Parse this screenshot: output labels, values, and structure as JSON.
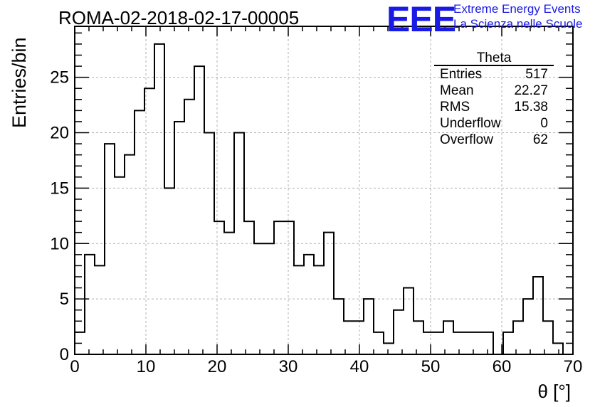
{
  "chart_data": {
    "type": "histogram",
    "title": "ROMA-02-2018-02-17-00005",
    "xlabel": "θ [°]",
    "ylabel": "Entries/bin",
    "xlim": [
      0,
      70
    ],
    "ylim": [
      0,
      29.6
    ],
    "bin_width": 1.4,
    "x_ticks": [
      0,
      10,
      20,
      30,
      40,
      50,
      60,
      70
    ],
    "y_ticks": [
      0,
      5,
      10,
      15,
      20,
      25
    ],
    "grid": true,
    "counts": [
      2,
      9,
      8,
      19,
      16,
      18,
      22,
      24,
      28,
      15,
      21,
      23,
      26,
      20,
      12,
      11,
      20,
      12,
      10,
      10,
      12,
      12,
      8,
      9,
      8,
      11,
      5,
      3,
      3,
      5,
      2,
      1,
      4,
      6,
      3,
      2,
      2,
      3,
      2,
      2,
      2,
      2,
      0,
      2,
      3,
      5,
      7,
      3,
      1,
      0
    ]
  },
  "stats_box": {
    "title": "Theta",
    "rows": [
      {
        "label": "Entries",
        "value": "517"
      },
      {
        "label": "Mean",
        "value": "22.27"
      },
      {
        "label": "RMS",
        "value": "15.38"
      },
      {
        "label": "Underflow",
        "value": "0"
      },
      {
        "label": "Overflow",
        "value": "62"
      }
    ]
  },
  "logo": {
    "mark": "EEE",
    "line1": "Extreme Energy Events",
    "line2": "La Scienza nelle Scuole",
    "color": "#1a1ae6"
  }
}
